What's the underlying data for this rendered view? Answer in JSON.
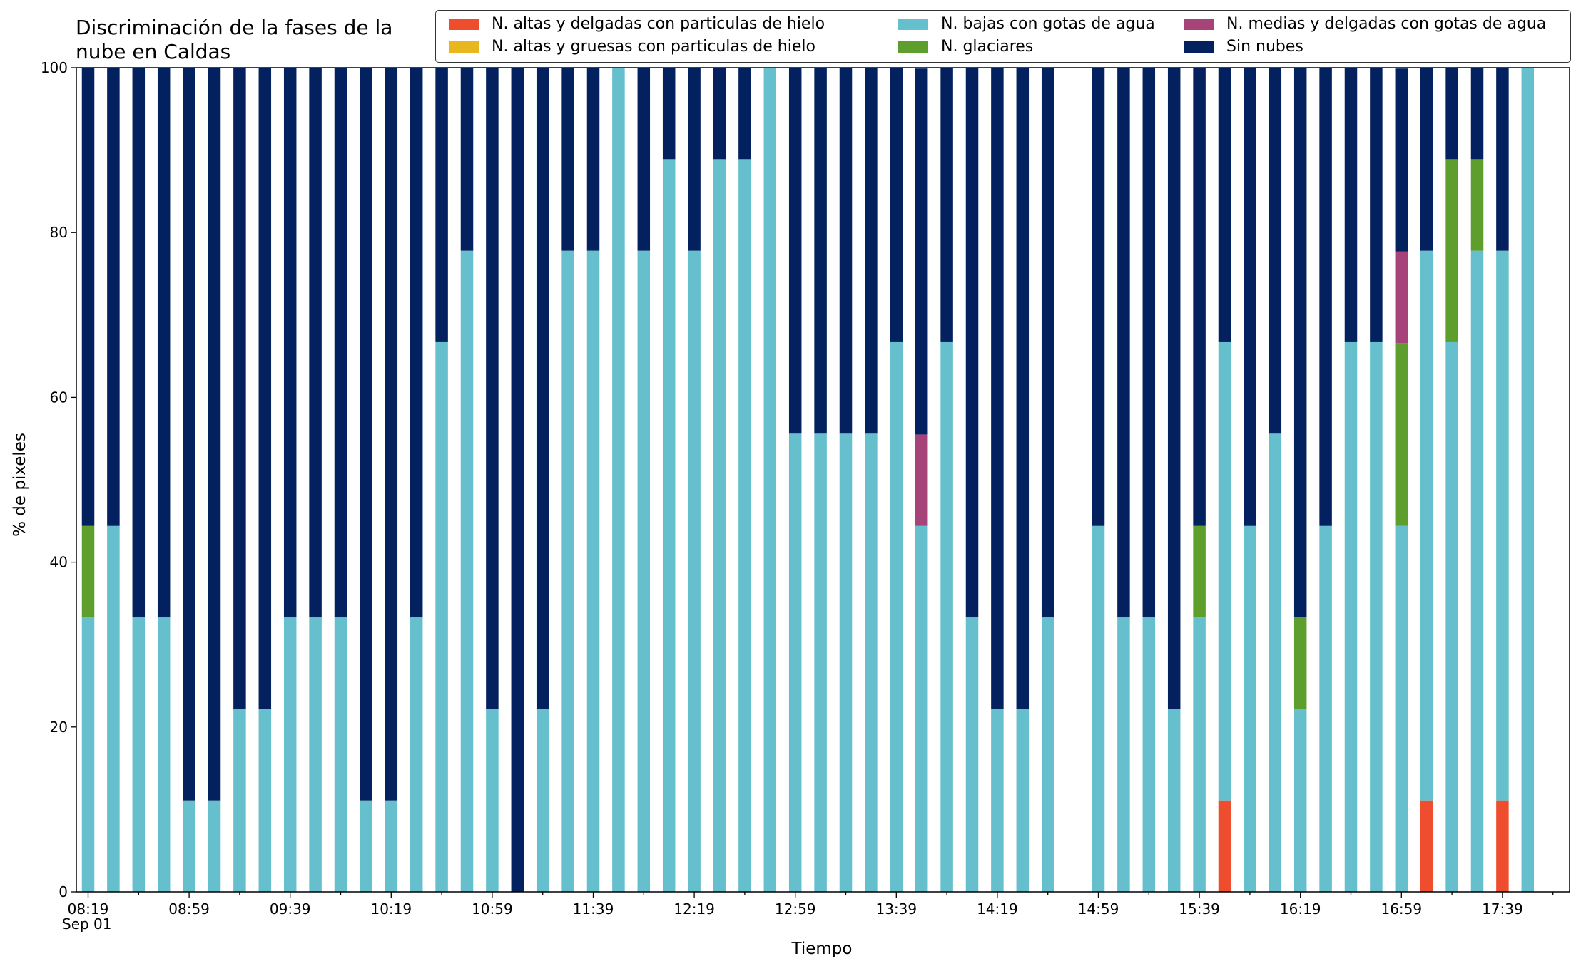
{
  "colors": {
    "n_altas_delgadas": "#ee4d2e",
    "n_altas_gruesas": "#e8b61e",
    "n_bajas": "#65bfcc",
    "n_medias": "#a6447a",
    "n_glaciares": "#5e9e2c",
    "sin_nubes": "#03215f"
  },
  "legend": {
    "items": [
      {
        "label": "N. altas y delgadas con particulas de hielo",
        "color": "#ee4d2e"
      },
      {
        "label": "N. altas y gruesas con particulas de hielo",
        "color": "#e8b61e"
      },
      {
        "label": "N. bajas con gotas de agua",
        "color": "#65bfcc"
      },
      {
        "label": "N. glaciares",
        "color": "#5e9e2c"
      },
      {
        "label": "N. medias y delgadas con gotas de agua",
        "color": "#a6447a"
      },
      {
        "label": "Sin nubes",
        "color": "#03215f"
      }
    ]
  },
  "chart_data": {
    "type": "bar",
    "stacked": true,
    "title": "Discriminación de la fases de la nube en Caldas",
    "title_lines": [
      "Discriminación de la fases de la",
      "nube en Caldas"
    ],
    "xlabel": "Tiempo",
    "ylabel": "% de pixeles",
    "date_label": "Sep 01",
    "ylim": [
      0,
      100
    ],
    "yticks": [
      0,
      20,
      40,
      60,
      80,
      100
    ],
    "xtick_labels": [
      "08:19",
      "08:59",
      "09:39",
      "10:19",
      "10:59",
      "11:39",
      "12:19",
      "12:59",
      "13:39",
      "14:19",
      "14:59",
      "15:39",
      "16:19",
      "16:59",
      "17:39"
    ],
    "x_start": "08:19",
    "x_interval_minutes": 10,
    "grid": false,
    "legend_position": "top",
    "categories": [
      "08:19",
      "08:29",
      "08:39",
      "08:49",
      "08:59",
      "09:09",
      "09:19",
      "09:29",
      "09:39",
      "09:49",
      "09:59",
      "10:09",
      "10:19",
      "10:29",
      "10:39",
      "10:49",
      "10:59",
      "11:09",
      "11:19",
      "11:29",
      "11:39",
      "11:49",
      "11:59",
      "12:09",
      "12:19",
      "12:29",
      "12:39",
      "12:49",
      "12:59",
      "13:09",
      "13:19",
      "13:29",
      "13:39",
      "13:49",
      "13:59",
      "14:09",
      "14:19",
      "14:29",
      "14:39",
      "14:49",
      "14:59",
      "15:09",
      "15:19",
      "15:29",
      "15:39",
      "15:49",
      "15:59",
      "16:09",
      "16:19",
      "16:29",
      "16:39",
      "16:49",
      "16:59",
      "17:09",
      "17:19",
      "17:29",
      "17:39",
      "17:49"
    ],
    "series": [
      {
        "name": "N. altas y delgadas con particulas de hielo",
        "color": "#ee4d2e",
        "values": [
          0,
          0,
          0,
          0,
          0,
          0,
          0,
          0,
          0,
          0,
          0,
          0,
          0,
          0,
          0,
          0,
          0,
          0,
          0,
          0,
          0,
          0,
          0,
          0,
          0,
          0,
          0,
          0,
          0,
          0,
          0,
          0,
          0,
          0,
          0,
          0,
          0,
          0,
          0,
          0,
          0,
          0,
          0,
          0,
          0,
          11.1,
          0,
          0,
          0,
          0,
          0,
          0,
          0,
          11.1,
          0,
          0,
          11.1,
          0
        ]
      },
      {
        "name": "N. altas y gruesas con particulas de hielo",
        "color": "#e8b61e",
        "values": [
          0,
          0,
          0,
          0,
          0,
          0,
          0,
          0,
          0,
          0,
          0,
          0,
          0,
          0,
          0,
          0,
          0,
          0,
          0,
          0,
          0,
          0,
          0,
          0,
          0,
          0,
          0,
          0,
          0,
          0,
          0,
          0,
          0,
          0,
          0,
          0,
          0,
          0,
          0,
          0,
          0,
          0,
          0,
          0,
          0,
          0,
          0,
          0,
          0,
          0,
          0,
          0,
          0,
          0,
          0,
          0,
          0,
          0
        ]
      },
      {
        "name": "N. bajas con gotas de agua",
        "color": "#65bfcc",
        "values": [
          33.3,
          44.4,
          33.3,
          33.3,
          11.1,
          11.1,
          22.2,
          22.2,
          33.3,
          33.3,
          33.3,
          11.1,
          11.1,
          33.3,
          66.7,
          77.8,
          22.2,
          0,
          22.2,
          77.8,
          77.8,
          100,
          77.8,
          88.9,
          77.8,
          88.9,
          88.9,
          100,
          55.6,
          55.6,
          55.6,
          55.6,
          66.7,
          44.4,
          66.7,
          33.3,
          22.2,
          22.2,
          33.3,
          0,
          44.4,
          33.3,
          33.3,
          22.2,
          33.3,
          55.6,
          44.4,
          55.6,
          22.2,
          44.4,
          66.7,
          66.7,
          44.4,
          66.7,
          66.7,
          77.8,
          66.7,
          100
        ]
      },
      {
        "name": "N. glaciares",
        "color": "#5e9e2c",
        "values": [
          11.1,
          0,
          0,
          0,
          0,
          0,
          0,
          0,
          0,
          0,
          0,
          0,
          0,
          0,
          0,
          0,
          0,
          0,
          0,
          0,
          0,
          0,
          0,
          0,
          0,
          0,
          0,
          0,
          0,
          0,
          0,
          0,
          0,
          0,
          0,
          0,
          0,
          0,
          0,
          0,
          0,
          0,
          0,
          0,
          11.1,
          0,
          0,
          0,
          11.1,
          0,
          0,
          0,
          22.2,
          0,
          22.2,
          11.1,
          0,
          0
        ]
      },
      {
        "name": "N. medias y delgadas con gotas de agua",
        "color": "#a6447a",
        "values": [
          0,
          0,
          0,
          0,
          0,
          0,
          0,
          0,
          0,
          0,
          0,
          0,
          0,
          0,
          0,
          0,
          0,
          0,
          0,
          0,
          0,
          0,
          0,
          0,
          0,
          0,
          0,
          0,
          0,
          0,
          0,
          0,
          0,
          11.1,
          0,
          0,
          0,
          0,
          0,
          0,
          0,
          0,
          0,
          0,
          0,
          0,
          0,
          0,
          0,
          0,
          0,
          0,
          11.1,
          0,
          0,
          0,
          0,
          0
        ]
      },
      {
        "name": "Sin nubes",
        "color": "#03215f",
        "values": [
          55.6,
          55.6,
          66.7,
          66.7,
          88.9,
          88.9,
          77.8,
          77.8,
          66.7,
          66.7,
          66.7,
          88.9,
          88.9,
          66.7,
          33.3,
          22.2,
          77.8,
          100,
          77.8,
          22.2,
          22.2,
          0,
          22.2,
          11.1,
          22.2,
          11.1,
          11.1,
          0,
          44.4,
          44.4,
          44.4,
          44.4,
          33.3,
          44.4,
          33.3,
          66.7,
          77.8,
          77.8,
          66.7,
          0,
          55.6,
          66.7,
          66.7,
          77.8,
          55.6,
          33.3,
          55.6,
          44.4,
          66.7,
          55.6,
          33.3,
          33.3,
          22.2,
          22.2,
          11.1,
          11.1,
          22.2,
          0
        ]
      }
    ]
  }
}
